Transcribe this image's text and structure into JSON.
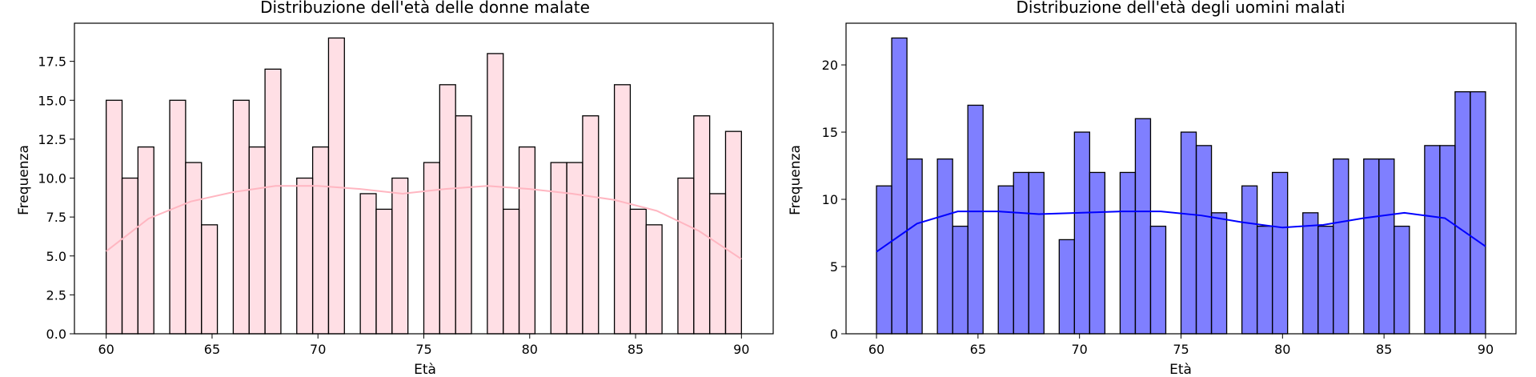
{
  "chart_data": [
    {
      "type": "bar",
      "title": "Distribuzione dell'età delle donne malate",
      "xlabel": "Età",
      "ylabel": "Frequenza",
      "xlim": [
        58.5,
        91.5
      ],
      "ylim": [
        0,
        19.95
      ],
      "xticks": [
        60,
        65,
        70,
        75,
        80,
        85,
        90
      ],
      "yticks": [
        0.0,
        2.5,
        5.0,
        7.5,
        10.0,
        12.5,
        15.0,
        17.5
      ],
      "ytick_labels": [
        "0.0",
        "2.5",
        "5.0",
        "7.5",
        "10.0",
        "12.5",
        "15.0",
        "17.5"
      ],
      "bin_start": 60,
      "bin_end": 90,
      "bar_color": "#ffc0cb",
      "bar_edge_color": "#000000",
      "kde_color": "#ffb6c1",
      "grid": false,
      "values": [
        15,
        10,
        12,
        0,
        15,
        11,
        7,
        0,
        15,
        12,
        17,
        0,
        10,
        12,
        19,
        0,
        9,
        8,
        10,
        0,
        11,
        16,
        14,
        0,
        18,
        8,
        12,
        0,
        11,
        11,
        14,
        0,
        16,
        8,
        7,
        0,
        10,
        14,
        9,
        13
      ],
      "kde_x": [
        60,
        62,
        64,
        66,
        68,
        70,
        72,
        74,
        76,
        78,
        80,
        82,
        84,
        86,
        88,
        90
      ],
      "kde_y": [
        5.3,
        7.4,
        8.5,
        9.1,
        9.5,
        9.5,
        9.3,
        9.0,
        9.3,
        9.5,
        9.3,
        9.0,
        8.6,
        7.9,
        6.6,
        4.8
      ]
    },
    {
      "type": "bar",
      "title": "Distribuzione dell'età degli uomini malati",
      "xlabel": "Età",
      "ylabel": "Frequenza",
      "xlim": [
        58.5,
        91.5
      ],
      "ylim": [
        0,
        23.1
      ],
      "xticks": [
        60,
        65,
        70,
        75,
        80,
        85,
        90
      ],
      "yticks": [
        0,
        5,
        10,
        15,
        20
      ],
      "ytick_labels": [
        "0",
        "5",
        "10",
        "15",
        "20"
      ],
      "bin_start": 60,
      "bin_end": 90,
      "bar_color": "#0000ff",
      "bar_edge_color": "#000000",
      "kde_color": "#0000ff",
      "grid": false,
      "values": [
        11,
        22,
        13,
        0,
        13,
        8,
        17,
        0,
        11,
        12,
        12,
        0,
        7,
        15,
        12,
        0,
        12,
        16,
        8,
        0,
        15,
        14,
        9,
        0,
        11,
        8,
        12,
        0,
        9,
        8,
        13,
        0,
        13,
        13,
        8,
        0,
        14,
        14,
        18,
        18
      ],
      "kde_x": [
        60,
        62,
        64,
        66,
        68,
        70,
        72,
        74,
        76,
        78,
        80,
        82,
        84,
        86,
        88,
        90
      ],
      "kde_y": [
        6.1,
        8.2,
        9.1,
        9.1,
        8.9,
        9.0,
        9.1,
        9.1,
        8.8,
        8.3,
        7.9,
        8.1,
        8.6,
        9.0,
        8.6,
        6.5
      ]
    }
  ]
}
